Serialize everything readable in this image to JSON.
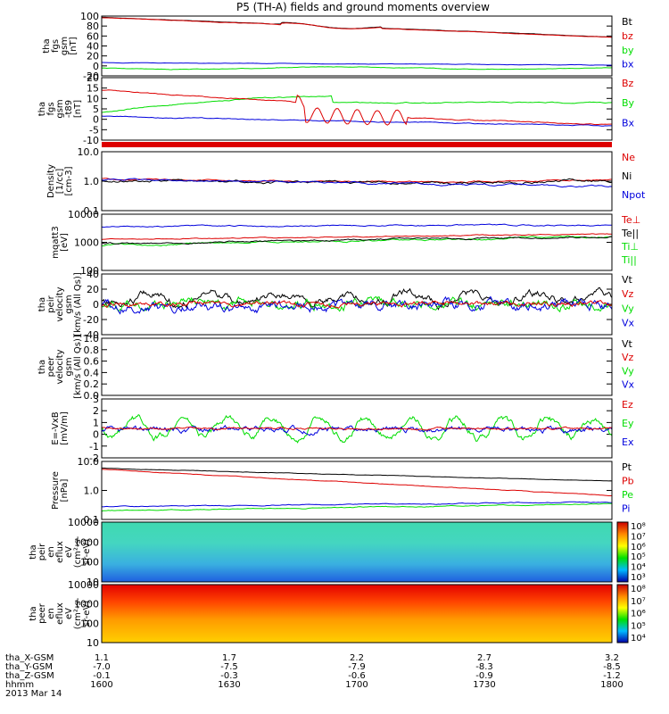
{
  "title": "P5 (TH-A) fields and ground moments overview",
  "colors": {
    "black": "#000000",
    "red": "#dd0000",
    "green": "#00dd00",
    "blue": "#0000dd"
  },
  "chart_data": [
    {
      "id": "p1",
      "type": "line",
      "ylabel": [
        "tha",
        "fgs",
        "gsm",
        "[nT]"
      ],
      "yticks": [
        "100",
        "80",
        "60",
        "40",
        "20",
        "0",
        "-20"
      ],
      "legend": [
        {
          "name": "Bt",
          "color": "black"
        },
        {
          "name": "bz",
          "color": "red"
        },
        {
          "name": "by",
          "color": "green"
        },
        {
          "name": "bx",
          "color": "blue"
        }
      ]
    },
    {
      "id": "p2",
      "type": "line",
      "ylabel": [
        "tha",
        "fgs",
        "gsm",
        "-t89",
        "[nT]"
      ],
      "yticks": [
        "20",
        "15",
        "10",
        "5",
        "0",
        "-5",
        "-10"
      ],
      "legend": [
        {
          "name": "Bz",
          "color": "red"
        },
        {
          "name": "By",
          "color": "green"
        },
        {
          "name": "Bx",
          "color": "blue"
        }
      ]
    },
    {
      "id": "p3",
      "type": "line",
      "log": true,
      "ylabel": [
        "Density",
        "[1/cc]",
        "[cm-3]"
      ],
      "yticks": [
        "10.0",
        "1.0",
        "0.1"
      ],
      "legend": [
        {
          "name": "Ne",
          "color": "red"
        },
        {
          "name": "Ni",
          "color": "black"
        },
        {
          "name": "Npot",
          "color": "blue"
        }
      ]
    },
    {
      "id": "p4",
      "type": "line",
      "log": true,
      "ylabel": [
        "mqatt3",
        "[eV]"
      ],
      "yticks": [
        "10000",
        "1000",
        "100"
      ],
      "legend": [
        {
          "name": "Te⊥",
          "color": "red"
        },
        {
          "name": "Te||",
          "color": "black"
        },
        {
          "name": "Ti⊥",
          "color": "green"
        },
        {
          "name": "Ti||",
          "color": "green"
        }
      ]
    },
    {
      "id": "p5",
      "type": "line",
      "ylabel": [
        "tha",
        "peir",
        "velocity",
        "gsm",
        "[km/s (All Qs)]"
      ],
      "yticks": [
        "40",
        "20",
        "0",
        "-20",
        "-40"
      ],
      "legend": [
        {
          "name": "Vt",
          "color": "black"
        },
        {
          "name": "Vz",
          "color": "red"
        },
        {
          "name": "Vy",
          "color": "green"
        },
        {
          "name": "Vx",
          "color": "blue"
        }
      ]
    },
    {
      "id": "p6",
      "type": "line",
      "ylabel": [
        "tha",
        "peer",
        "velocity",
        "gsm",
        "[km/s (All Qs)]"
      ],
      "yticks": [
        "1.0",
        "0.8",
        "0.6",
        "0.4",
        "0.2",
        "0.0"
      ],
      "legend": [
        {
          "name": "Vt",
          "color": "black"
        },
        {
          "name": "Vz",
          "color": "red"
        },
        {
          "name": "Vy",
          "color": "green"
        },
        {
          "name": "Vx",
          "color": "blue"
        }
      ]
    },
    {
      "id": "p7",
      "type": "line",
      "ylabel": [
        "E=-VxB",
        "[mV/m]"
      ],
      "yticks": [
        "3",
        "2",
        "1",
        "0",
        "-1",
        "-2"
      ],
      "legend": [
        {
          "name": "Ez",
          "color": "red"
        },
        {
          "name": "Ey",
          "color": "green"
        },
        {
          "name": "Ex",
          "color": "blue"
        }
      ]
    },
    {
      "id": "p8",
      "type": "line",
      "log": true,
      "ylabel": [
        "Pressure",
        "[nPa]"
      ],
      "yticks": [
        "10.0",
        "1.0",
        "0.1"
      ],
      "legend": [
        {
          "name": "Pt",
          "color": "black"
        },
        {
          "name": "Pb",
          "color": "red"
        },
        {
          "name": "Pe",
          "color": "green"
        },
        {
          "name": "Pi",
          "color": "blue"
        }
      ]
    },
    {
      "id": "p9",
      "type": "heatmap",
      "ylabel": [
        "tha",
        "peir",
        "en",
        "eflux",
        "eV",
        "(cm²-s-",
        "sr-eV)"
      ],
      "yticks": [
        "10000",
        "1000",
        "100",
        "10"
      ],
      "colorbar": [
        "10⁸",
        "10⁷",
        "10⁶",
        "10⁵",
        "10⁴",
        "10³"
      ]
    },
    {
      "id": "p10",
      "type": "heatmap",
      "ylabel": [
        "tha",
        "peer",
        "en",
        "eflux",
        "eV",
        "(cm²-s-",
        "sr-eV)"
      ],
      "yticks": [
        "10000",
        "1000",
        "100",
        "10"
      ],
      "colorbar": [
        "10⁸",
        "10⁷",
        "10⁶",
        "10⁵",
        "10⁴"
      ]
    }
  ],
  "xaxis": {
    "rows": [
      {
        "label": "tha_X-GSM",
        "values": [
          "1.1",
          "1.7",
          "2.2",
          "2.7",
          "3.2"
        ]
      },
      {
        "label": "tha_Y-GSM",
        "values": [
          "-7.0",
          "-7.5",
          "-7.9",
          "-8.3",
          "-8.5"
        ]
      },
      {
        "label": "tha_Z-GSM",
        "values": [
          "-0.1",
          "-0.3",
          "-0.6",
          "-0.9",
          "-1.2"
        ]
      },
      {
        "label": "hhmm",
        "values": [
          "1600",
          "1630",
          "1700",
          "1730",
          "1800"
        ]
      }
    ],
    "date": "2013 Mar 14"
  }
}
